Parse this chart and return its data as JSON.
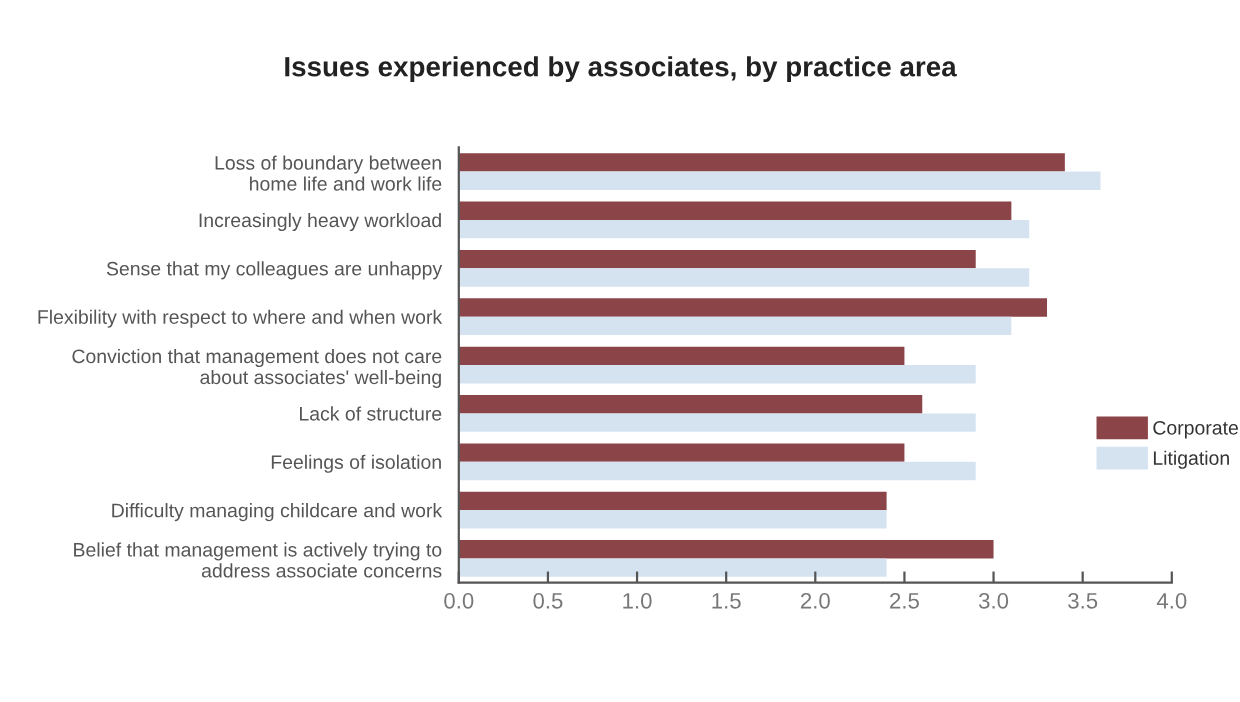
{
  "chart_data": {
    "type": "bar",
    "orientation": "horizontal",
    "title": "Issues experienced by associates, by practice area",
    "categories": [
      "Loss of boundary between\nhome life and work life",
      "Increasingly heavy workload",
      "Sense that my colleagues are unhappy",
      "Flexibility with respect to where and when work",
      "Conviction that management does not care\nabout associates' well-being",
      "Lack of structure",
      "Feelings of isolation",
      "Difficulty managing childcare and work",
      "Belief that management is actively trying to\naddress associate concerns"
    ],
    "series": [
      {
        "name": "Corporate",
        "color": "#8b4448",
        "values": [
          3.4,
          3.1,
          2.9,
          3.3,
          2.5,
          2.6,
          2.5,
          2.4,
          3.0
        ]
      },
      {
        "name": "Litigation",
        "color": "#d5e3f1",
        "values": [
          3.6,
          3.2,
          3.2,
          3.1,
          2.9,
          2.9,
          2.9,
          2.4,
          2.4
        ]
      }
    ],
    "xlim": [
      0,
      4.0
    ],
    "xticks": [
      {
        "value": 0,
        "label": "0.0"
      },
      {
        "value": 0.5,
        "label": "0.5"
      },
      {
        "value": 1,
        "label": "1.0"
      },
      {
        "value": 1.5,
        "label": "1.5"
      },
      {
        "value": 2,
        "label": "2.0"
      },
      {
        "value": 2.5,
        "label": "2.5"
      },
      {
        "value": 3,
        "label": "3.0"
      },
      {
        "value": 3.5,
        "label": "3.5"
      },
      {
        "value": 4,
        "label": "4.0"
      }
    ],
    "grid": false,
    "legend": "right"
  }
}
